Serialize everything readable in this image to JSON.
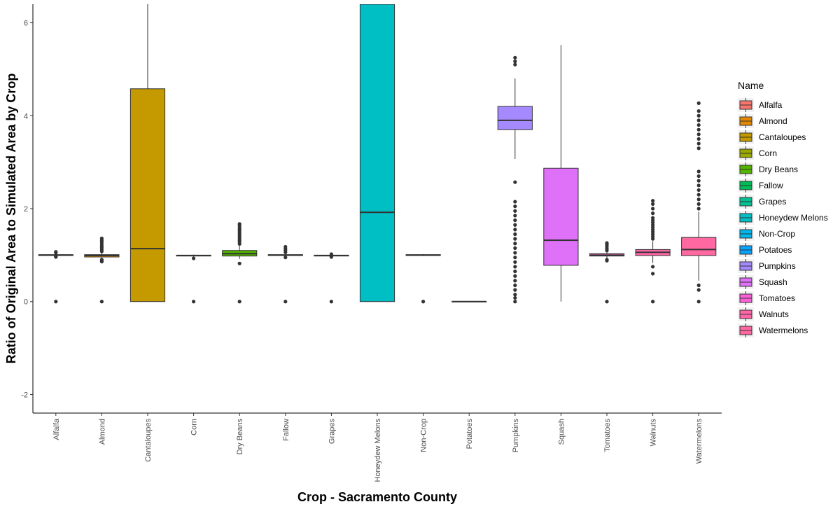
{
  "chart_data": {
    "type": "boxplot",
    "title": "",
    "xlabel": "Crop - Sacramento County",
    "ylabel": "Ratio of Original Area to Simulated Area by Crop",
    "ylim": [
      -2.4,
      6.4
    ],
    "yticks": [
      -2,
      0,
      2,
      4,
      6
    ],
    "grid": false,
    "legend": {
      "title": "Name",
      "position": "right"
    },
    "categories": [
      "Alfalfa",
      "Almond",
      "Cantaloupes",
      "Corn",
      "Dry Beans",
      "Fallow",
      "Grapes",
      "Honeydew Melons",
      "Non-Crop",
      "Potatoes",
      "Pumpkins",
      "Squash",
      "Tomatoes",
      "Walnuts",
      "Watermelons"
    ],
    "series": [
      {
        "name": "Alfalfa",
        "color": "#F8766D",
        "q1": 0.99,
        "median": 1.0,
        "q3": 1.01,
        "whisker_low": 0.98,
        "whisker_high": 1.02,
        "outliers": [
          0.0,
          0.96,
          0.97,
          1.05,
          1.07
        ]
      },
      {
        "name": "Almond",
        "color": "#E38900",
        "q1": 0.96,
        "median": 0.99,
        "q3": 1.01,
        "whisker_low": 0.93,
        "whisker_high": 1.05,
        "outliers": [
          0.0,
          0.86,
          0.88,
          0.9,
          1.08,
          1.12,
          1.16,
          1.2,
          1.24,
          1.28,
          1.32,
          1.36
        ]
      },
      {
        "name": "Cantaloupes",
        "color": "#C49A00",
        "q1": 0.0,
        "median": 1.14,
        "q3": 4.58,
        "whisker_low": 0.0,
        "whisker_high": 6.4,
        "outliers": []
      },
      {
        "name": "Corn",
        "color": "#99A800",
        "q1": 0.98,
        "median": 0.99,
        "q3": 1.0,
        "whisker_low": 0.97,
        "whisker_high": 1.01,
        "outliers": [
          0.0,
          0.93
        ]
      },
      {
        "name": "Dry Beans",
        "color": "#53B400",
        "q1": 0.98,
        "median": 1.03,
        "q3": 1.1,
        "whisker_low": 0.92,
        "whisker_high": 1.2,
        "outliers": [
          0.0,
          0.82,
          1.24,
          1.28,
          1.32,
          1.36,
          1.4,
          1.44,
          1.48,
          1.52,
          1.56,
          1.6,
          1.64,
          1.67
        ]
      },
      {
        "name": "Fallow",
        "color": "#00BC56",
        "q1": 0.99,
        "median": 1.0,
        "q3": 1.01,
        "whisker_low": 0.98,
        "whisker_high": 1.03,
        "outliers": [
          0.0,
          0.95,
          1.06,
          1.1,
          1.14,
          1.18
        ]
      },
      {
        "name": "Grapes",
        "color": "#00C094",
        "q1": 0.98,
        "median": 0.99,
        "q3": 1.0,
        "whisker_low": 0.97,
        "whisker_high": 1.01,
        "outliers": [
          0.0,
          0.96,
          1.02
        ]
      },
      {
        "name": "Honeydew Melons",
        "color": "#00BFC4",
        "q1": 0.0,
        "median": 1.92,
        "q3": 6.4,
        "whisker_low": 0.0,
        "whisker_high": 6.4,
        "outliers": []
      },
      {
        "name": "Non-Crop",
        "color": "#00B6EB",
        "q1": 0.99,
        "median": 1.0,
        "q3": 1.01,
        "whisker_low": 0.98,
        "whisker_high": 1.02,
        "outliers": [
          0.0
        ]
      },
      {
        "name": "Potatoes",
        "color": "#06A4FF",
        "q1": 0.0,
        "median": 0.0,
        "q3": 0.0,
        "whisker_low": 0.0,
        "whisker_high": 0.0,
        "outliers": []
      },
      {
        "name": "Pumpkins",
        "color": "#A58AFF",
        "q1": 3.7,
        "median": 3.9,
        "q3": 4.2,
        "whisker_low": 3.07,
        "whisker_high": 4.8,
        "outliers": [
          0.0,
          0.08,
          0.15,
          0.25,
          0.35,
          0.45,
          0.55,
          0.65,
          0.75,
          0.85,
          0.95,
          1.05,
          1.15,
          1.25,
          1.35,
          1.45,
          1.55,
          1.65,
          1.75,
          1.85,
          1.95,
          2.05,
          2.15,
          2.57,
          5.1,
          5.17,
          5.25
        ]
      },
      {
        "name": "Squash",
        "color": "#DF70F8",
        "q1": 0.78,
        "median": 1.32,
        "q3": 2.87,
        "whisker_low": 0.0,
        "whisker_high": 5.52,
        "outliers": []
      },
      {
        "name": "Tomatoes",
        "color": "#FB61D7",
        "q1": 0.98,
        "median": 1.0,
        "q3": 1.03,
        "whisker_low": 0.94,
        "whisker_high": 1.07,
        "outliers": [
          0.0,
          0.88,
          0.9,
          1.1,
          1.14,
          1.18,
          1.22,
          1.26
        ]
      },
      {
        "name": "Walnuts",
        "color": "#FF66A8",
        "q1": 0.99,
        "median": 1.06,
        "q3": 1.12,
        "whisker_low": 0.83,
        "whisker_high": 1.3,
        "outliers": [
          0.0,
          0.6,
          0.75,
          1.35,
          1.4,
          1.45,
          1.5,
          1.55,
          1.6,
          1.65,
          1.7,
          1.75,
          1.8,
          1.9,
          2.0,
          2.1,
          2.17
        ]
      },
      {
        "name": "Watermelons",
        "color": "#FF68A1",
        "q1": 0.99,
        "median": 1.12,
        "q3": 1.38,
        "whisker_low": 0.45,
        "whisker_high": 1.93,
        "outliers": [
          0.0,
          0.25,
          0.35,
          2.0,
          2.1,
          2.2,
          2.3,
          2.4,
          2.5,
          2.6,
          2.7,
          2.8,
          3.3,
          3.4,
          3.5,
          3.6,
          3.7,
          3.8,
          3.9,
          4.0,
          4.1,
          4.27
        ]
      }
    ]
  }
}
